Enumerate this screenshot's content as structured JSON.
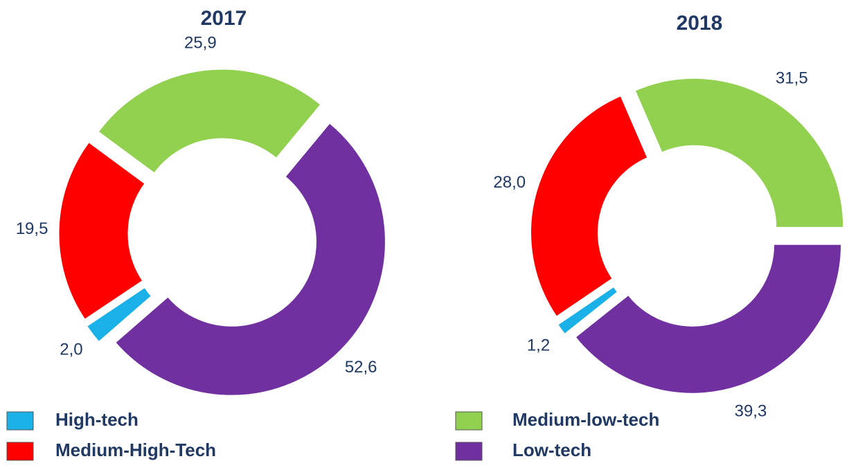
{
  "chart_data": [
    {
      "type": "donut",
      "title": "2017",
      "categories": [
        "High-tech",
        "Medium-High-Tech",
        "Medium-low-tech",
        "Low-tech"
      ],
      "values": [
        2.0,
        19.5,
        25.9,
        52.6
      ],
      "value_labels": [
        "2,0",
        "19,5",
        "25,9",
        "52,6"
      ],
      "colors": [
        "#1ab0e8",
        "#ff0000",
        "#92d050",
        "#7030a0"
      ]
    },
    {
      "type": "donut",
      "title": "2018",
      "categories": [
        "High-tech",
        "Medium-High-Tech",
        "Medium-low-tech",
        "Low-tech"
      ],
      "values": [
        1.2,
        28.0,
        31.5,
        39.3
      ],
      "value_labels": [
        "1,2",
        "28,0",
        "31,5",
        "39,3"
      ],
      "colors": [
        "#1ab0e8",
        "#ff0000",
        "#92d050",
        "#7030a0"
      ]
    }
  ]
}
